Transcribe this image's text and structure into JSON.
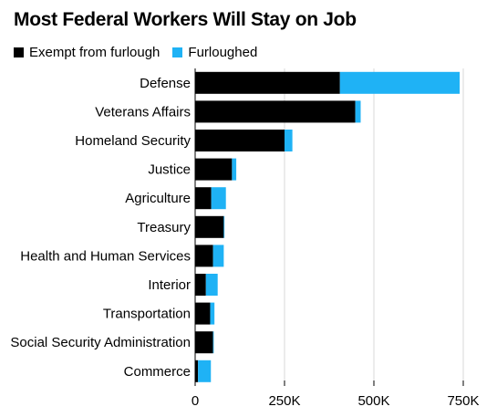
{
  "chart_data": {
    "type": "bar",
    "orientation": "horizontal",
    "stacked": true,
    "title": "Most Federal Workers Will Stay on Job",
    "xlabel": "",
    "ylabel": "",
    "xlim": [
      0,
      750000
    ],
    "x_ticks": [
      0,
      250000,
      500000,
      750000
    ],
    "x_tick_labels": [
      "0",
      "250K",
      "500K",
      "750K"
    ],
    "grid": true,
    "legend_position": "top-left",
    "categories": [
      "Defense",
      "Veterans Affairs",
      "Homeland Security",
      "Justice",
      "Agriculture",
      "Treasury",
      "Health and Human Services",
      "Interior",
      "Transportation",
      "Social Security Administration",
      "Commerce"
    ],
    "series": [
      {
        "name": "Exempt from furlough",
        "color": "#000000",
        "values": [
          405000,
          448000,
          250000,
          103000,
          45000,
          80000,
          50000,
          30000,
          42000,
          50000,
          8000
        ]
      },
      {
        "name": "Furloughed",
        "color": "#1fb2f5",
        "values": [
          335000,
          15000,
          22000,
          12000,
          41000,
          2000,
          30000,
          33000,
          12000,
          2000,
          36000
        ]
      }
    ]
  }
}
